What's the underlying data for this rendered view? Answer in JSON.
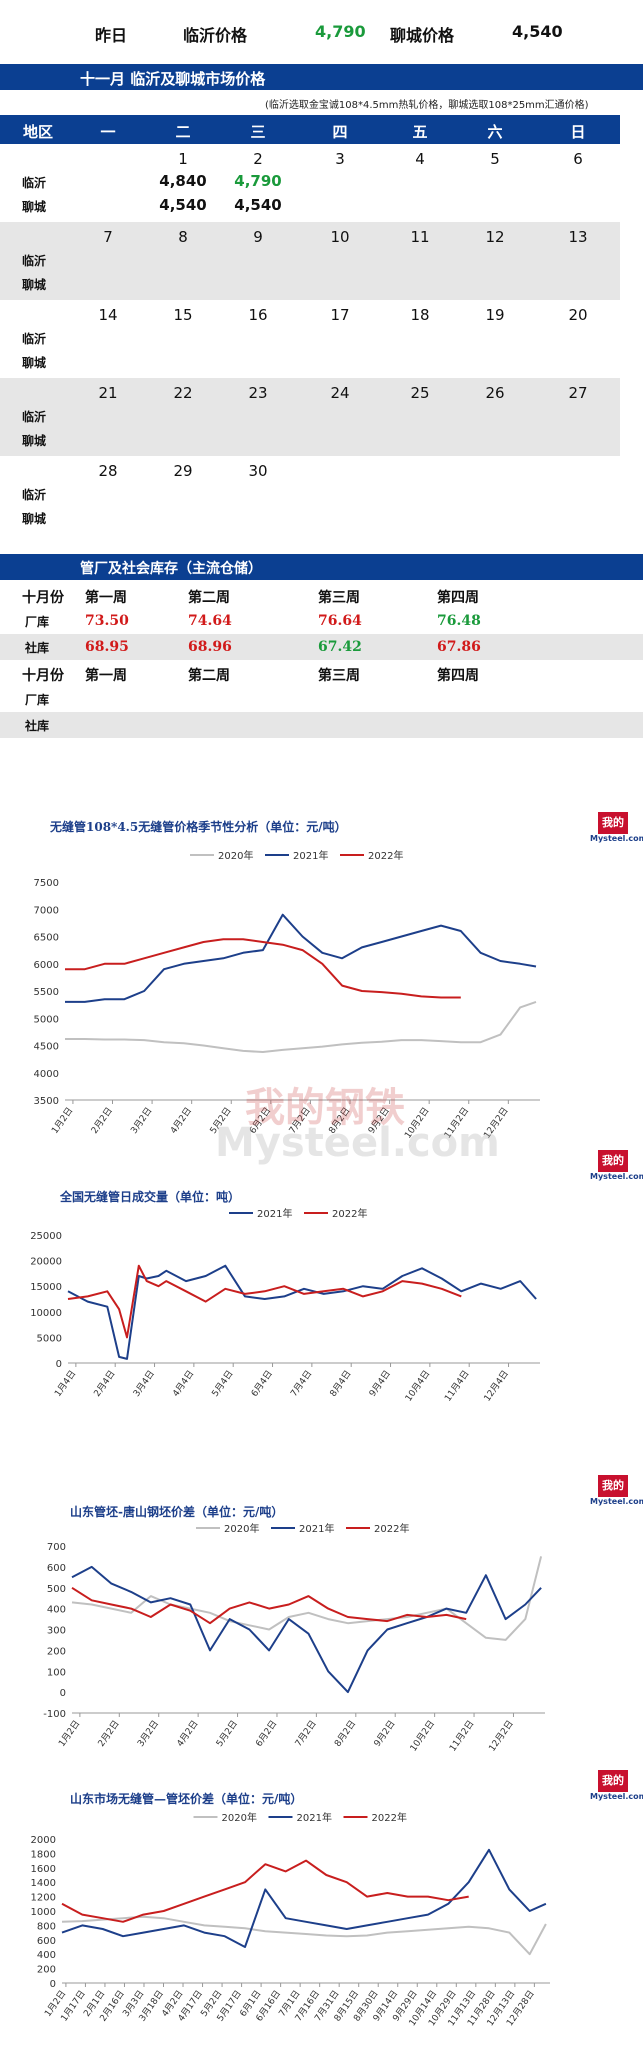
{
  "top": {
    "yesterday_label": "昨日",
    "linyi_label": "临沂价格",
    "linyi_value": "4,790",
    "liaocheng_label": "聊城价格",
    "liaocheng_value": "4,540"
  },
  "calendar": {
    "title": "十一月  临沂及聊城市场价格",
    "note": "(临沂选取金宝诚108*4.5mm热轧价格，聊城选取108*25mm汇通价格)",
    "header": [
      "地区",
      "一",
      "二",
      "三",
      "四",
      "五",
      "六",
      "日"
    ],
    "weeks": [
      {
        "days": [
          "",
          "1",
          "2",
          "3",
          "4",
          "5",
          "6"
        ],
        "linyi": [
          "",
          "4,840",
          "4,790",
          "",
          "",
          "",
          ""
        ],
        "liaocheng": [
          "",
          "4,540",
          "4,540",
          "",
          "",
          "",
          ""
        ]
      },
      {
        "days": [
          "7",
          "8",
          "9",
          "10",
          "11",
          "12",
          "13"
        ],
        "linyi": [],
        "liaocheng": []
      },
      {
        "days": [
          "14",
          "15",
          "16",
          "17",
          "18",
          "19",
          "20"
        ],
        "linyi": [],
        "liaocheng": []
      },
      {
        "days": [
          "21",
          "22",
          "23",
          "24",
          "25",
          "26",
          "27"
        ],
        "linyi": [],
        "liaocheng": []
      },
      {
        "days": [
          "28",
          "29",
          "30",
          "",
          "",
          "",
          ""
        ],
        "linyi": [],
        "liaocheng": []
      }
    ],
    "row_labels": [
      "临沂",
      "聊城"
    ]
  },
  "inventory": {
    "title": "管厂及社会库存（主流仓储）",
    "block1": {
      "month": "十月份",
      "weeks": [
        "第一周",
        "第二周",
        "第三周",
        "第四周"
      ],
      "factory_label": "厂库",
      "factory": [
        "73.50",
        "74.64",
        "76.64",
        "76.48"
      ],
      "social_label": "社库",
      "social": [
        "68.95",
        "68.96",
        "67.42",
        "67.86"
      ]
    },
    "block2": {
      "month": "十月份",
      "weeks": [
        "第一周",
        "第二周",
        "第三周",
        "第四周"
      ],
      "factory_label": "厂库",
      "social_label": "社库"
    },
    "colors": {
      "up": "#d11a1a",
      "down": "#1a9a3b"
    }
  },
  "logo": {
    "cn": "我的钢铁",
    "en": "Mysteel.com"
  },
  "watermark": {
    "cn": "我的钢铁",
    "en": "Mysteel.com"
  },
  "chart_data": [
    {
      "type": "line",
      "title": "无缝管108*4.5无缝管价格季节性分析（单位：元/吨）",
      "x_ticks": [
        "1月2日",
        "2月2日",
        "3月2日",
        "4月2日",
        "5月2日",
        "6月2日",
        "7月2日",
        "8月2日",
        "9月2日",
        "10月2日",
        "11月2日",
        "12月2日"
      ],
      "ylim": [
        3500,
        7500
      ],
      "yticks": [
        3500,
        4000,
        4500,
        5000,
        5500,
        6000,
        6500,
        7000,
        7500
      ],
      "x": [
        0,
        0.5,
        1,
        1.5,
        2,
        2.5,
        3,
        3.5,
        4,
        4.5,
        5,
        5.5,
        6,
        6.5,
        7,
        7.5,
        8,
        8.5,
        9,
        9.5,
        10,
        10.5,
        11,
        11.5,
        11.9
      ],
      "series": [
        {
          "name": "2020年",
          "color": "#c0c0c0",
          "values": [
            4620,
            4620,
            4610,
            4610,
            4600,
            4560,
            4540,
            4500,
            4450,
            4400,
            4380,
            4420,
            4450,
            4480,
            4520,
            4550,
            4570,
            4600,
            4600,
            4580,
            4560,
            4560,
            4700,
            5200,
            5300
          ]
        },
        {
          "name": "2021年",
          "color": "#1d3f8a",
          "values": [
            5300,
            5300,
            5350,
            5350,
            5500,
            5900,
            6000,
            6050,
            6100,
            6200,
            6250,
            6900,
            6500,
            6200,
            6100,
            6300,
            6400,
            6500,
            6600,
            6700,
            6600,
            6200,
            6050,
            6000,
            5950
          ]
        },
        {
          "name": "2022年",
          "color": "#c81e1e",
          "values": [
            5900,
            5900,
            6000,
            6000,
            6100,
            6200,
            6300,
            6400,
            6450,
            6450,
            6400,
            6350,
            6250,
            6000,
            5600,
            5500,
            5480,
            5450,
            5400,
            5380,
            5380,
            null,
            null,
            null,
            null
          ]
        }
      ]
    },
    {
      "type": "line",
      "title": "全国无缝管日成交量（单位：吨）",
      "x_ticks": [
        "1月4日",
        "2月4日",
        "3月4日",
        "4月4日",
        "5月4日",
        "6月4日",
        "7月4日",
        "8月4日",
        "9月4日",
        "10月4日",
        "11月4日",
        "12月4日"
      ],
      "ylim": [
        0,
        25000
      ],
      "yticks": [
        0,
        5000,
        10000,
        15000,
        20000,
        25000
      ],
      "x": [
        0,
        0.5,
        1,
        1.3,
        1.5,
        1.8,
        2,
        2.3,
        2.5,
        3,
        3.5,
        4,
        4.5,
        5,
        5.5,
        6,
        6.5,
        7,
        7.5,
        8,
        8.5,
        9,
        9.5,
        10,
        10.5,
        11,
        11.5,
        11.9
      ],
      "series": [
        {
          "name": "2021年",
          "color": "#1d3f8a",
          "values": [
            14000,
            12000,
            11000,
            1200,
            800,
            17000,
            16500,
            17000,
            18000,
            16000,
            17000,
            19000,
            13000,
            12500,
            13000,
            14500,
            13500,
            14000,
            15000,
            14500,
            17000,
            18500,
            16500,
            14000,
            15500,
            14500,
            16000,
            12500
          ]
        },
        {
          "name": "2022年",
          "color": "#c81e1e",
          "values": [
            12500,
            13000,
            14000,
            10500,
            5000,
            19000,
            16000,
            15000,
            16000,
            14000,
            12000,
            14500,
            13500,
            14000,
            15000,
            13500,
            14000,
            14500,
            13000,
            14000,
            16000,
            15500,
            14500,
            13000,
            null,
            null,
            null,
            null
          ]
        }
      ]
    },
    {
      "type": "line",
      "title": "山东管坯-唐山钢坯价差（单位：元/吨）",
      "x_ticks": [
        "1月2日",
        "2月2日",
        "3月2日",
        "4月2日",
        "5月2日",
        "6月2日",
        "7月2日",
        "8月2日",
        "9月2日",
        "10月2日",
        "11月2日",
        "12月2日"
      ],
      "ylim": [
        -100,
        700
      ],
      "yticks": [
        -100,
        0,
        100,
        200,
        300,
        400,
        500,
        600,
        700
      ],
      "x": [
        0,
        0.5,
        1,
        1.5,
        2,
        2.5,
        3,
        3.5,
        4,
        4.5,
        5,
        5.5,
        6,
        6.5,
        7,
        7.5,
        8,
        8.5,
        9,
        9.5,
        10,
        10.5,
        11,
        11.5,
        11.9
      ],
      "series": [
        {
          "name": "2020年",
          "color": "#c0c0c0",
          "values": [
            430,
            420,
            400,
            380,
            460,
            420,
            400,
            380,
            340,
            320,
            300,
            360,
            380,
            350,
            330,
            340,
            350,
            360,
            380,
            400,
            330,
            260,
            250,
            350,
            650
          ]
        },
        {
          "name": "2021年",
          "color": "#1d3f8a",
          "values": [
            550,
            600,
            520,
            480,
            430,
            450,
            420,
            200,
            350,
            300,
            200,
            350,
            280,
            100,
            0,
            200,
            300,
            330,
            360,
            400,
            380,
            560,
            350,
            420,
            500
          ]
        },
        {
          "name": "2022年",
          "color": "#c81e1e",
          "values": [
            500,
            440,
            420,
            400,
            360,
            420,
            390,
            330,
            400,
            430,
            400,
            420,
            460,
            400,
            360,
            350,
            340,
            370,
            360,
            370,
            350,
            null,
            null,
            null,
            null
          ]
        }
      ]
    },
    {
      "type": "line",
      "title": "山东市场无缝管—管坯价差（单位：元/吨）",
      "x_ticks": [
        "1月2日",
        "1月17日",
        "2月1日",
        "2月16日",
        "3月3日",
        "3月18日",
        "4月2日",
        "4月17日",
        "5月2日",
        "5月17日",
        "6月1日",
        "6月16日",
        "7月1日",
        "7月16日",
        "7月31日",
        "8月15日",
        "8月30日",
        "9月14日",
        "9月29日",
        "10月14日",
        "10月29日",
        "11月13日",
        "11月28日",
        "12月13日",
        "12月28日"
      ],
      "ylim": [
        0,
        2000
      ],
      "yticks": [
        0,
        200,
        400,
        600,
        800,
        1000,
        1200,
        1400,
        1600,
        1800,
        2000
      ],
      "x": [
        0,
        0.5,
        1,
        1.5,
        2,
        2.5,
        3,
        3.5,
        4,
        4.5,
        5,
        5.5,
        6,
        6.5,
        7,
        7.5,
        8,
        8.5,
        9,
        9.5,
        10,
        10.5,
        11,
        11.5,
        11.9
      ],
      "series": [
        {
          "name": "2020年",
          "color": "#c0c0c0",
          "values": [
            850,
            860,
            880,
            900,
            920,
            900,
            850,
            800,
            780,
            760,
            720,
            700,
            680,
            660,
            650,
            660,
            700,
            720,
            740,
            760,
            780,
            760,
            700,
            400,
            820
          ]
        },
        {
          "name": "2021年",
          "color": "#1d3f8a",
          "values": [
            700,
            800,
            750,
            650,
            700,
            750,
            800,
            700,
            650,
            500,
            1300,
            900,
            850,
            800,
            750,
            800,
            850,
            900,
            950,
            1100,
            1400,
            1850,
            1300,
            1000,
            1100
          ]
        },
        {
          "name": "2022年",
          "color": "#c81e1e",
          "values": [
            1100,
            950,
            900,
            850,
            950,
            1000,
            1100,
            1200,
            1300,
            1400,
            1650,
            1550,
            1700,
            1500,
            1400,
            1200,
            1250,
            1200,
            1200,
            1150,
            1200,
            null,
            null,
            null,
            null
          ]
        }
      ]
    }
  ]
}
